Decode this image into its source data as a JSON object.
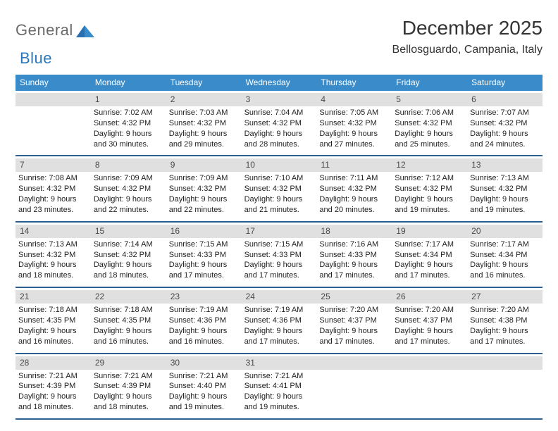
{
  "logo": {
    "general": "General",
    "blue": "Blue"
  },
  "title": "December 2025",
  "location": "Bellosguardo, Campania, Italy",
  "colors": {
    "header_bg": "#3a8bc9",
    "header_text": "#ffffff",
    "week_divider": "#2b5f8f",
    "daynum_bg": "#e0e0e0",
    "daynum_text": "#4a4a4a",
    "body_text": "#222222",
    "title_text": "#333333",
    "logo_gray": "#6a6a6a",
    "logo_blue": "#2b77bb",
    "page_bg": "#ffffff"
  },
  "fonts": {
    "title_size_pt": 21,
    "location_size_pt": 12,
    "header_cell_size_pt": 9,
    "daynum_size_pt": 9,
    "body_line_size_pt": 8
  },
  "day_headers": [
    "Sunday",
    "Monday",
    "Tuesday",
    "Wednesday",
    "Thursday",
    "Friday",
    "Saturday"
  ],
  "weeks": [
    [
      {
        "n": "",
        "sr": "",
        "ss": "",
        "dl1": "",
        "dl2": ""
      },
      {
        "n": "1",
        "sr": "Sunrise: 7:02 AM",
        "ss": "Sunset: 4:32 PM",
        "dl1": "Daylight: 9 hours",
        "dl2": "and 30 minutes."
      },
      {
        "n": "2",
        "sr": "Sunrise: 7:03 AM",
        "ss": "Sunset: 4:32 PM",
        "dl1": "Daylight: 9 hours",
        "dl2": "and 29 minutes."
      },
      {
        "n": "3",
        "sr": "Sunrise: 7:04 AM",
        "ss": "Sunset: 4:32 PM",
        "dl1": "Daylight: 9 hours",
        "dl2": "and 28 minutes."
      },
      {
        "n": "4",
        "sr": "Sunrise: 7:05 AM",
        "ss": "Sunset: 4:32 PM",
        "dl1": "Daylight: 9 hours",
        "dl2": "and 27 minutes."
      },
      {
        "n": "5",
        "sr": "Sunrise: 7:06 AM",
        "ss": "Sunset: 4:32 PM",
        "dl1": "Daylight: 9 hours",
        "dl2": "and 25 minutes."
      },
      {
        "n": "6",
        "sr": "Sunrise: 7:07 AM",
        "ss": "Sunset: 4:32 PM",
        "dl1": "Daylight: 9 hours",
        "dl2": "and 24 minutes."
      }
    ],
    [
      {
        "n": "7",
        "sr": "Sunrise: 7:08 AM",
        "ss": "Sunset: 4:32 PM",
        "dl1": "Daylight: 9 hours",
        "dl2": "and 23 minutes."
      },
      {
        "n": "8",
        "sr": "Sunrise: 7:09 AM",
        "ss": "Sunset: 4:32 PM",
        "dl1": "Daylight: 9 hours",
        "dl2": "and 22 minutes."
      },
      {
        "n": "9",
        "sr": "Sunrise: 7:09 AM",
        "ss": "Sunset: 4:32 PM",
        "dl1": "Daylight: 9 hours",
        "dl2": "and 22 minutes."
      },
      {
        "n": "10",
        "sr": "Sunrise: 7:10 AM",
        "ss": "Sunset: 4:32 PM",
        "dl1": "Daylight: 9 hours",
        "dl2": "and 21 minutes."
      },
      {
        "n": "11",
        "sr": "Sunrise: 7:11 AM",
        "ss": "Sunset: 4:32 PM",
        "dl1": "Daylight: 9 hours",
        "dl2": "and 20 minutes."
      },
      {
        "n": "12",
        "sr": "Sunrise: 7:12 AM",
        "ss": "Sunset: 4:32 PM",
        "dl1": "Daylight: 9 hours",
        "dl2": "and 19 minutes."
      },
      {
        "n": "13",
        "sr": "Sunrise: 7:13 AM",
        "ss": "Sunset: 4:32 PM",
        "dl1": "Daylight: 9 hours",
        "dl2": "and 19 minutes."
      }
    ],
    [
      {
        "n": "14",
        "sr": "Sunrise: 7:13 AM",
        "ss": "Sunset: 4:32 PM",
        "dl1": "Daylight: 9 hours",
        "dl2": "and 18 minutes."
      },
      {
        "n": "15",
        "sr": "Sunrise: 7:14 AM",
        "ss": "Sunset: 4:32 PM",
        "dl1": "Daylight: 9 hours",
        "dl2": "and 18 minutes."
      },
      {
        "n": "16",
        "sr": "Sunrise: 7:15 AM",
        "ss": "Sunset: 4:33 PM",
        "dl1": "Daylight: 9 hours",
        "dl2": "and 17 minutes."
      },
      {
        "n": "17",
        "sr": "Sunrise: 7:15 AM",
        "ss": "Sunset: 4:33 PM",
        "dl1": "Daylight: 9 hours",
        "dl2": "and 17 minutes."
      },
      {
        "n": "18",
        "sr": "Sunrise: 7:16 AM",
        "ss": "Sunset: 4:33 PM",
        "dl1": "Daylight: 9 hours",
        "dl2": "and 17 minutes."
      },
      {
        "n": "19",
        "sr": "Sunrise: 7:17 AM",
        "ss": "Sunset: 4:34 PM",
        "dl1": "Daylight: 9 hours",
        "dl2": "and 17 minutes."
      },
      {
        "n": "20",
        "sr": "Sunrise: 7:17 AM",
        "ss": "Sunset: 4:34 PM",
        "dl1": "Daylight: 9 hours",
        "dl2": "and 16 minutes."
      }
    ],
    [
      {
        "n": "21",
        "sr": "Sunrise: 7:18 AM",
        "ss": "Sunset: 4:35 PM",
        "dl1": "Daylight: 9 hours",
        "dl2": "and 16 minutes."
      },
      {
        "n": "22",
        "sr": "Sunrise: 7:18 AM",
        "ss": "Sunset: 4:35 PM",
        "dl1": "Daylight: 9 hours",
        "dl2": "and 16 minutes."
      },
      {
        "n": "23",
        "sr": "Sunrise: 7:19 AM",
        "ss": "Sunset: 4:36 PM",
        "dl1": "Daylight: 9 hours",
        "dl2": "and 16 minutes."
      },
      {
        "n": "24",
        "sr": "Sunrise: 7:19 AM",
        "ss": "Sunset: 4:36 PM",
        "dl1": "Daylight: 9 hours",
        "dl2": "and 17 minutes."
      },
      {
        "n": "25",
        "sr": "Sunrise: 7:20 AM",
        "ss": "Sunset: 4:37 PM",
        "dl1": "Daylight: 9 hours",
        "dl2": "and 17 minutes."
      },
      {
        "n": "26",
        "sr": "Sunrise: 7:20 AM",
        "ss": "Sunset: 4:37 PM",
        "dl1": "Daylight: 9 hours",
        "dl2": "and 17 minutes."
      },
      {
        "n": "27",
        "sr": "Sunrise: 7:20 AM",
        "ss": "Sunset: 4:38 PM",
        "dl1": "Daylight: 9 hours",
        "dl2": "and 17 minutes."
      }
    ],
    [
      {
        "n": "28",
        "sr": "Sunrise: 7:21 AM",
        "ss": "Sunset: 4:39 PM",
        "dl1": "Daylight: 9 hours",
        "dl2": "and 18 minutes."
      },
      {
        "n": "29",
        "sr": "Sunrise: 7:21 AM",
        "ss": "Sunset: 4:39 PM",
        "dl1": "Daylight: 9 hours",
        "dl2": "and 18 minutes."
      },
      {
        "n": "30",
        "sr": "Sunrise: 7:21 AM",
        "ss": "Sunset: 4:40 PM",
        "dl1": "Daylight: 9 hours",
        "dl2": "and 19 minutes."
      },
      {
        "n": "31",
        "sr": "Sunrise: 7:21 AM",
        "ss": "Sunset: 4:41 PM",
        "dl1": "Daylight: 9 hours",
        "dl2": "and 19 minutes."
      },
      {
        "n": "",
        "sr": "",
        "ss": "",
        "dl1": "",
        "dl2": ""
      },
      {
        "n": "",
        "sr": "",
        "ss": "",
        "dl1": "",
        "dl2": ""
      },
      {
        "n": "",
        "sr": "",
        "ss": "",
        "dl1": "",
        "dl2": ""
      }
    ]
  ]
}
